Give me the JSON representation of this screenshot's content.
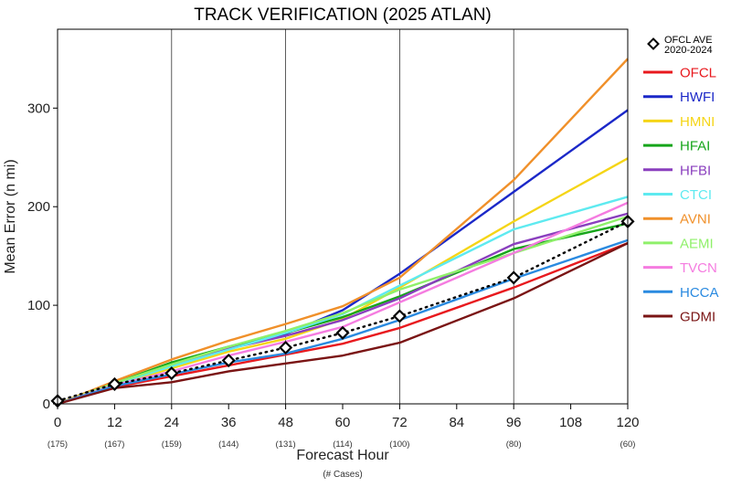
{
  "chart_data": {
    "type": "line",
    "title": "TRACK VERIFICATION (2025 ATLAN)",
    "xlabel": "Forecast Hour",
    "xlabel_sub": "(# Cases)",
    "ylabel": "Mean Error (n mi)",
    "x_ticks": [
      "0",
      "12",
      "24",
      "36",
      "48",
      "60",
      "72",
      "84",
      "96",
      "108",
      "120"
    ],
    "y_ticks": [
      "0",
      "100",
      "200",
      "300"
    ],
    "xlim": [
      0,
      120
    ],
    "ylim": [
      0,
      380
    ],
    "cases": [
      {
        "hour": 0,
        "label": "(175)"
      },
      {
        "hour": 12,
        "label": "(167)"
      },
      {
        "hour": 24,
        "label": "(159)"
      },
      {
        "hour": 36,
        "label": "(144)"
      },
      {
        "hour": 48,
        "label": "(131)"
      },
      {
        "hour": 60,
        "label": "(114)"
      },
      {
        "hour": 72,
        "label": "(100)"
      },
      {
        "hour": 96,
        "label": "(80)"
      },
      {
        "hour": 120,
        "label": "(60)"
      }
    ],
    "gridlines_x": [
      24,
      48,
      72,
      96
    ],
    "legend_position": "right",
    "x": [
      0,
      12,
      24,
      36,
      48,
      60,
      72,
      96,
      120
    ],
    "reference": {
      "name": "OFCL AVE",
      "name_line2": "2020-2024",
      "color": "#000000",
      "values": [
        3,
        20,
        31,
        44,
        57,
        72,
        89,
        128,
        185
      ]
    },
    "series": [
      {
        "name": "OFCL",
        "color": "#e8191e",
        "values": [
          0,
          17,
          28,
          39,
          50,
          61,
          77,
          118,
          163
        ]
      },
      {
        "name": "HWFI",
        "color": "#1b28c8",
        "values": [
          0,
          21,
          40,
          57,
          71,
          95,
          132,
          215,
          298
        ]
      },
      {
        "name": "HMNI",
        "color": "#f5d516",
        "values": [
          0,
          19,
          36,
          53,
          66,
          86,
          118,
          185,
          249
        ]
      },
      {
        "name": "HFAI",
        "color": "#16a51a",
        "values": [
          0,
          21,
          42,
          58,
          72,
          88,
          109,
          157,
          183
        ]
      },
      {
        "name": "HFBI",
        "color": "#8a3fbe",
        "values": [
          0,
          20,
          39,
          56,
          69,
          85,
          107,
          162,
          193
        ]
      },
      {
        "name": "CTCI",
        "color": "#5eeaf0",
        "values": [
          0,
          20,
          38,
          55,
          72,
          91,
          120,
          177,
          210
        ]
      },
      {
        "name": "AVNI",
        "color": "#f0902a",
        "values": [
          0,
          23,
          45,
          64,
          81,
          99,
          128,
          227,
          350
        ]
      },
      {
        "name": "AEMI",
        "color": "#8ff06a",
        "values": [
          0,
          21,
          40,
          58,
          74,
          92,
          116,
          153,
          190
        ]
      },
      {
        "name": "TVCN",
        "color": "#f57ce0",
        "values": [
          0,
          19,
          33,
          49,
          63,
          78,
          103,
          153,
          204
        ]
      },
      {
        "name": "HCCA",
        "color": "#2a8ae0",
        "values": [
          0,
          18,
          30,
          42,
          51,
          66,
          85,
          127,
          166
        ]
      },
      {
        "name": "GDMI",
        "color": "#7a1414",
        "values": [
          0,
          16,
          22,
          33,
          41,
          49,
          62,
          107,
          163
        ]
      }
    ]
  }
}
